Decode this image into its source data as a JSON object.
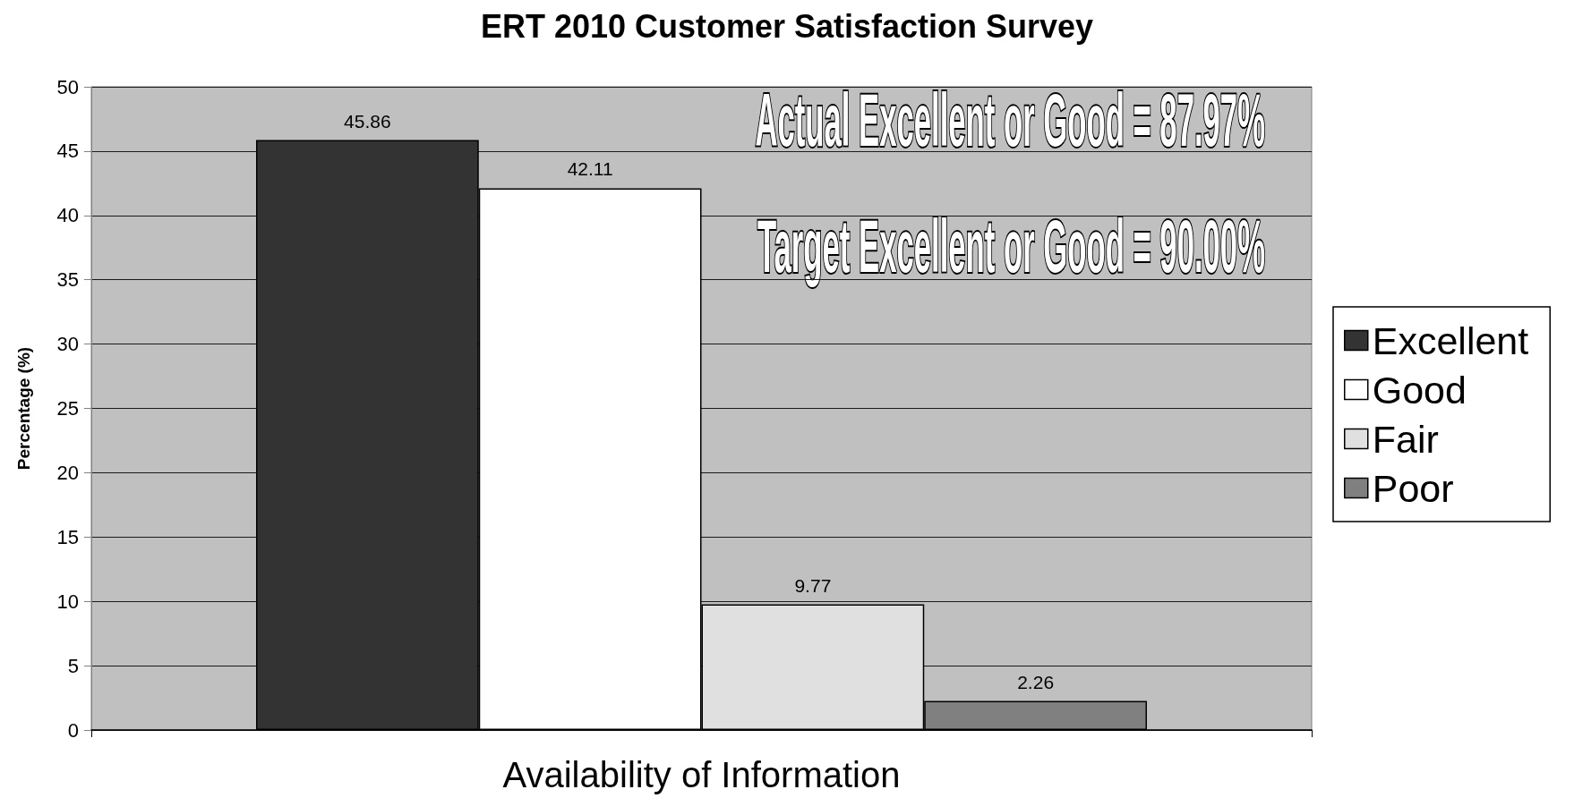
{
  "chart_data": {
    "type": "bar",
    "title": "ERT 2010 Customer Satisfaction Survey",
    "ylabel": "Percentage (%)",
    "categories": [
      "Availability of Information"
    ],
    "series": [
      {
        "name": "Excellent",
        "color": "#333333",
        "values": [
          45.86
        ]
      },
      {
        "name": "Good",
        "color": "#ffffff",
        "values": [
          42.11
        ]
      },
      {
        "name": "Fair",
        "color": "#e0e0e0",
        "values": [
          9.77
        ]
      },
      {
        "name": "Poor",
        "color": "#808080",
        "values": [
          2.26
        ]
      }
    ],
    "ylim": [
      0,
      50
    ],
    "yticks": [
      0,
      5,
      10,
      15,
      20,
      25,
      30,
      35,
      40,
      45,
      50
    ],
    "grid": "y",
    "legend": "right",
    "data_labels": true,
    "annotations": [
      "Actual Excellent or Good = 87.97%",
      "Target Excellent or Good = 90.00%"
    ]
  }
}
